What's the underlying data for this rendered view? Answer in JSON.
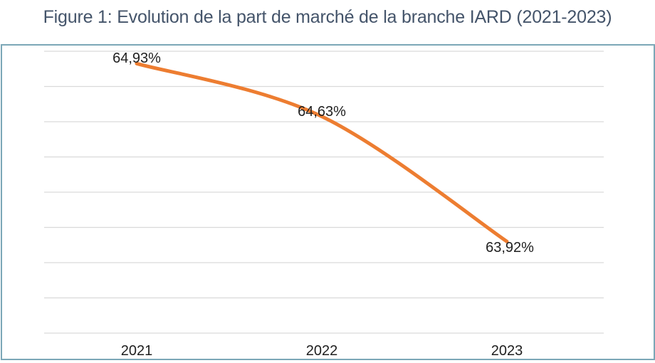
{
  "figure": {
    "title": "Figure 1: Evolution de la part de marché de la branche IARD (2021-2023)"
  },
  "chart_data": {
    "type": "line",
    "title": "Figure 1: Evolution de la part de marché de la branche IARD (2021-2023)",
    "categories": [
      "2021",
      "2022",
      "2023"
    ],
    "values": [
      64.93,
      64.63,
      63.92
    ],
    "data_labels": [
      "64,93%",
      "64,63%",
      "63,92%"
    ],
    "xlabel": "",
    "ylabel": "",
    "ylim": [
      63.4,
      65.0
    ],
    "gridline_interval": 0.2,
    "grid": true,
    "legend": "none",
    "smooth_line": true,
    "markers": false,
    "colors": {
      "line": "#ED7D31",
      "gridline": "#D9D9D9",
      "chart_border": "#7BA7B7",
      "title_text": "#44546A",
      "label_text": "#1F1F1F"
    }
  }
}
